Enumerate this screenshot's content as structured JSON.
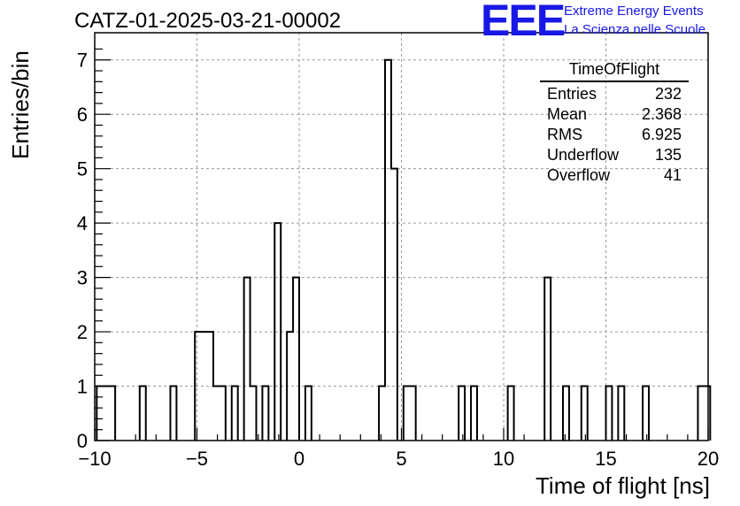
{
  "header": {
    "title": "CATZ-01-2025-03-21-00002",
    "logo_text": "EEE",
    "logo_line1": "Extreme Energy Events",
    "logo_line2": "La Scienza nelle Scuole",
    "logo_color": "#1818e6"
  },
  "stats": {
    "title": "TimeOfFlight",
    "rows": [
      {
        "label": "Entries",
        "value": "232"
      },
      {
        "label": "Mean",
        "value": "2.368"
      },
      {
        "label": "RMS",
        "value": "6.925"
      },
      {
        "label": "Underflow",
        "value": "135"
      },
      {
        "label": "Overflow",
        "value": "41"
      }
    ]
  },
  "chart_data": {
    "type": "bar",
    "histogram": true,
    "xlabel": "Time of flight [ns]",
    "ylabel": "Entries/bin",
    "xlim": [
      -10,
      20
    ],
    "ylim": [
      0,
      7.5
    ],
    "xticks": [
      "−10",
      "−5",
      "0",
      "5",
      "10",
      "15",
      "20"
    ],
    "yticks": [
      "0",
      "1",
      "2",
      "3",
      "4",
      "5",
      "6",
      "7"
    ],
    "grid": true,
    "bin_width": 0.3,
    "bins": [
      {
        "x": -9.9,
        "value": 1
      },
      {
        "x": -9.6,
        "value": 1
      },
      {
        "x": -9.3,
        "value": 1
      },
      {
        "x": -7.8,
        "value": 1
      },
      {
        "x": -6.3,
        "value": 1
      },
      {
        "x": -5.1,
        "value": 2
      },
      {
        "x": -4.8,
        "value": 2
      },
      {
        "x": -4.5,
        "value": 2
      },
      {
        "x": -4.2,
        "value": 1
      },
      {
        "x": -3.9,
        "value": 1
      },
      {
        "x": -3.3,
        "value": 1
      },
      {
        "x": -2.7,
        "value": 3
      },
      {
        "x": -2.4,
        "value": 1
      },
      {
        "x": -1.8,
        "value": 1
      },
      {
        "x": -1.2,
        "value": 4
      },
      {
        "x": -0.6,
        "value": 2
      },
      {
        "x": -0.3,
        "value": 3
      },
      {
        "x": 0.3,
        "value": 1
      },
      {
        "x": 3.9,
        "value": 1
      },
      {
        "x": 4.2,
        "value": 7
      },
      {
        "x": 4.5,
        "value": 5
      },
      {
        "x": 5.1,
        "value": 1
      },
      {
        "x": 5.4,
        "value": 1
      },
      {
        "x": 7.8,
        "value": 1
      },
      {
        "x": 8.4,
        "value": 1
      },
      {
        "x": 10.2,
        "value": 1
      },
      {
        "x": 12.0,
        "value": 3
      },
      {
        "x": 12.9,
        "value": 1
      },
      {
        "x": 13.8,
        "value": 1
      },
      {
        "x": 15.0,
        "value": 1
      },
      {
        "x": 15.6,
        "value": 1
      },
      {
        "x": 16.8,
        "value": 1
      },
      {
        "x": 19.5,
        "value": 1
      },
      {
        "x": 19.8,
        "value": 1
      }
    ]
  }
}
